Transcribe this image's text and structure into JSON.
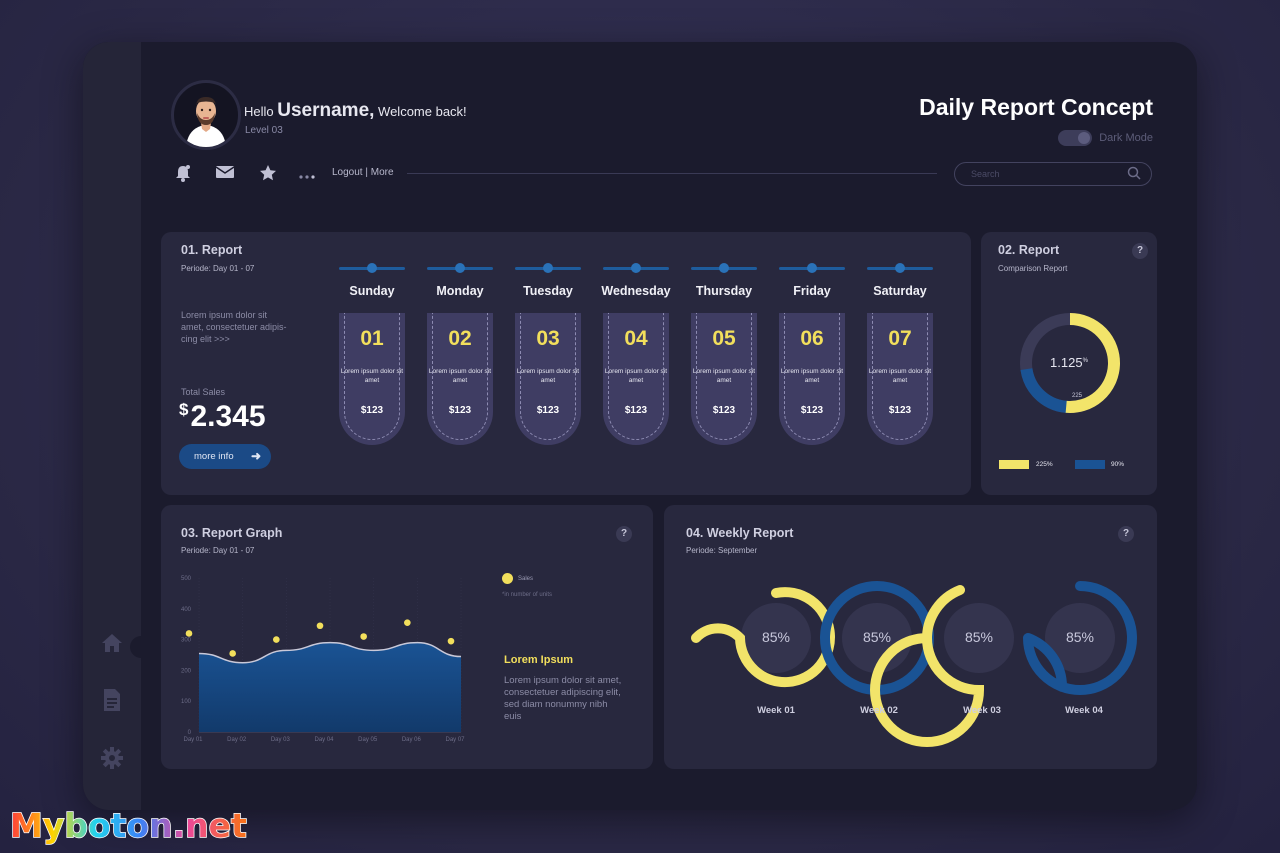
{
  "header": {
    "greeting": "Hello",
    "username": "Username,",
    "welcome": "Welcome back!",
    "level": "Level 03",
    "title": "Daily Report Concept",
    "dark_mode_label": "Dark Mode",
    "links": "Logout | More",
    "search_placeholder": "Search"
  },
  "sidebar": {
    "icons": [
      "home-icon",
      "document-icon",
      "gear-icon"
    ]
  },
  "toolbar": {
    "icons": [
      "bell-icon",
      "mail-icon",
      "star-icon",
      "more-dots-icon"
    ]
  },
  "report1": {
    "title": "01. Report",
    "period": "Periode: Day 01 - 07",
    "description": "Lorem ipsum dolor sit amet, consectetuer adipis- cing elit >>>",
    "total_sales_label": "Total Sales",
    "currency": "$",
    "total_sales": "2.345",
    "more_info": "more info",
    "days": [
      {
        "name": "Sunday",
        "num": "01",
        "text": "Lorem ipsum dolor sit amet",
        "price": "$123"
      },
      {
        "name": "Monday",
        "num": "02",
        "text": "Lorem ipsum dolor sit amet",
        "price": "$123"
      },
      {
        "name": "Tuesday",
        "num": "03",
        "text": "Lorem ipsum dolor sit amet",
        "price": "$123"
      },
      {
        "name": "Wednesday",
        "num": "04",
        "text": "Lorem ipsum dolor sit amet",
        "price": "$123"
      },
      {
        "name": "Thursday",
        "num": "05",
        "text": "Lorem ipsum dolor sit amet",
        "price": "$123"
      },
      {
        "name": "Friday",
        "num": "06",
        "text": "Lorem ipsum dolor sit amet",
        "price": "$123"
      },
      {
        "name": "Saturday",
        "num": "07",
        "text": "Lorem ipsum dolor sit amet",
        "price": "$123"
      }
    ]
  },
  "report2": {
    "title": "02. Report",
    "subtitle": "Comparison Report",
    "help": "?",
    "center_value": "1.125",
    "center_unit": "%",
    "inner_label": "225",
    "legend": [
      {
        "label": "225%",
        "color": "#f2e46a"
      },
      {
        "label": "90%",
        "color": "#1a5394"
      }
    ]
  },
  "report3": {
    "title": "03. Report Graph",
    "period": "Periode: Day 01 - 07",
    "help": "?",
    "legend_sales": "Sales",
    "legend_note": "*in number of units",
    "headline": "Lorem Ipsum",
    "body": "Lorem ipsum dolor sit amet, consectetuer adipiscing elit, sed diam nonummy nibh euis",
    "chart_data": {
      "type": "area",
      "categories": [
        "Day 01",
        "Day 02",
        "Day 03",
        "Day 04",
        "Day 05",
        "Day 06",
        "Day 07"
      ],
      "y_ticks": [
        "0",
        "100",
        "200",
        "300",
        "400",
        "500"
      ],
      "ylim": [
        0,
        500
      ],
      "series": [
        {
          "name": "Sales",
          "kind": "points",
          "values": [
            320,
            255,
            300,
            345,
            310,
            355,
            295
          ],
          "color": "#f2df5c"
        }
      ],
      "area_values": [
        255,
        225,
        265,
        290,
        265,
        290,
        245
      ],
      "area_color": "#1a5394"
    }
  },
  "report4": {
    "title": "04. Weekly Report",
    "period": "Periode: September",
    "help": "?",
    "weeks": [
      {
        "label": "Week 01",
        "percent": "85%",
        "color": "#f2e46a"
      },
      {
        "label": "Week 02",
        "percent": "85%",
        "color": "#1a5394"
      },
      {
        "label": "Week 03",
        "percent": "85%",
        "color": "#f2e46a"
      },
      {
        "label": "Week 04",
        "percent": "85%",
        "color": "#1a5394"
      }
    ]
  },
  "watermark": "Myboton.net",
  "colors": {
    "accent_yellow": "#f2df5c",
    "accent_blue": "#1a5394",
    "card": "#28283e",
    "frame": "#1b1b2d"
  }
}
